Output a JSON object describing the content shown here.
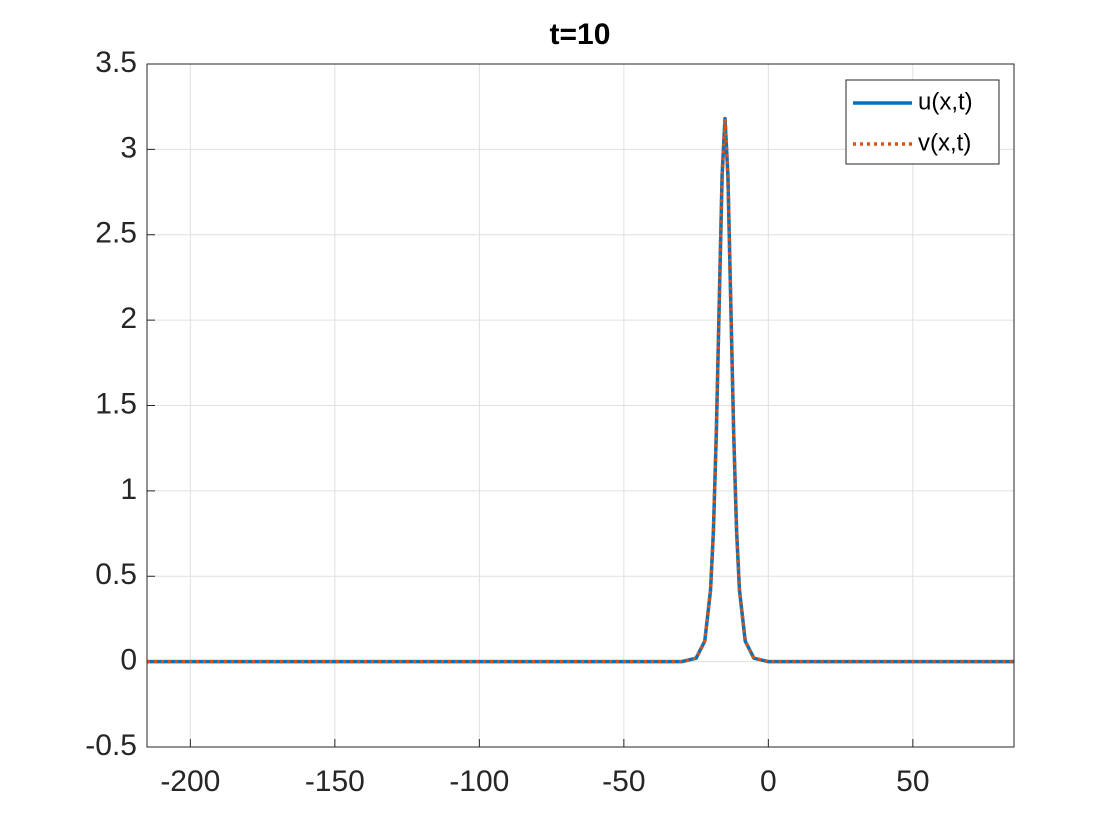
{
  "chart_data": {
    "type": "line",
    "title": "t=10",
    "x": [
      -215,
      -100,
      -30,
      -25,
      -22,
      -20,
      -19,
      -18,
      -17,
      -16,
      -15,
      -14,
      -13,
      -12,
      -11,
      -10,
      -8,
      -5,
      0,
      85
    ],
    "series": [
      {
        "name": "u(x,t)",
        "color": "#0072bd",
        "style": "solid",
        "values": [
          0,
          0,
          0,
          0.02,
          0.12,
          0.42,
          0.77,
          1.34,
          2.1,
          2.85,
          3.18,
          2.85,
          2.1,
          1.34,
          0.77,
          0.42,
          0.12,
          0.02,
          0,
          0
        ]
      },
      {
        "name": "v(x,t)",
        "color": "#d95319",
        "style": "dotted",
        "values": [
          0,
          0,
          0,
          0.02,
          0.12,
          0.42,
          0.77,
          1.34,
          2.1,
          2.85,
          3.18,
          2.85,
          2.1,
          1.34,
          0.77,
          0.42,
          0.12,
          0.02,
          0,
          0
        ]
      }
    ],
    "xlim": [
      -215,
      85
    ],
    "xticks": [
      -200,
      -150,
      -100,
      -50,
      0,
      50
    ],
    "ylim": [
      -0.5,
      3.5
    ],
    "yticks": [
      -0.5,
      0,
      0.5,
      1,
      1.5,
      2,
      2.5,
      3,
      3.5
    ],
    "grid": true,
    "legend": "northeast"
  }
}
